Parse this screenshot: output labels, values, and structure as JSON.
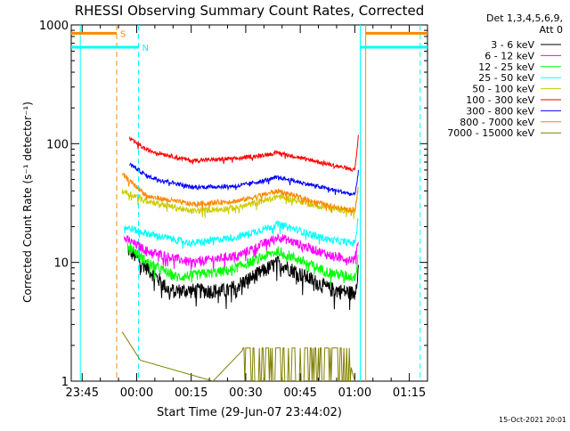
{
  "chart_data": {
    "type": "line",
    "title": "RHESSI Observing Summary Count Rates, Corrected",
    "xlabel": "Start Time (29-Jun-07 23:44:02)",
    "ylabel": "Corrected Count Rate (s⁻¹ detector⁻¹)",
    "y_scale": "log",
    "ylim": [
      1,
      1000
    ],
    "xlim_minutes_after_2345": [
      -3,
      95
    ],
    "x_ticks": [
      {
        "label": "23:45",
        "minutes": 0
      },
      {
        "label": "00:00",
        "minutes": 15
      },
      {
        "label": "00:15",
        "minutes": 30
      },
      {
        "label": "00:30",
        "minutes": 45
      },
      {
        "label": "00:45",
        "minutes": 60
      },
      {
        "label": "01:00",
        "minutes": 75
      },
      {
        "label": "01:15",
        "minutes": 90
      }
    ],
    "y_ticks": [
      {
        "label": "1",
        "value": 1
      },
      {
        "label": "10",
        "value": 10
      },
      {
        "label": "100",
        "value": 100
      },
      {
        "label": "1000",
        "value": 1000
      }
    ],
    "legend_header": [
      "Det 1,3,4,5,6,9,",
      "Att 0"
    ],
    "legend_position": "right",
    "series": [
      {
        "name": "3 - 6 keV",
        "color": "#000000",
        "start": 12.5,
        "start_level": 13,
        "profile": [
          [
            18,
            9
          ],
          [
            24,
            5.8
          ],
          [
            40,
            5.8
          ],
          [
            54,
            10
          ],
          [
            68,
            6
          ],
          [
            75,
            5.5
          ],
          [
            76,
            9
          ]
        ],
        "jitter": 0.15
      },
      {
        "name": "6 - 12 keV",
        "color": "#ff00ff",
        "start": 11.5,
        "start_level": 16,
        "profile": [
          [
            18,
            12.5
          ],
          [
            30,
            10
          ],
          [
            43,
            11.5
          ],
          [
            54,
            16.5
          ],
          [
            68,
            11.5
          ],
          [
            75,
            10.5
          ],
          [
            76,
            16
          ]
        ],
        "jitter": 0.09
      },
      {
        "name": "12 - 25 keV",
        "color": "#00ff00",
        "start": 12.5,
        "start_level": 14,
        "profile": [
          [
            18,
            10
          ],
          [
            26,
            7.5
          ],
          [
            40,
            8.5
          ],
          [
            54,
            12.5
          ],
          [
            68,
            8.2
          ],
          [
            75,
            7.5
          ],
          [
            76,
            12
          ]
        ],
        "jitter": 0.1
      },
      {
        "name": "25 - 50 keV",
        "color": "#00ffff",
        "start": 11.5,
        "start_level": 20,
        "profile": [
          [
            18,
            17.5
          ],
          [
            30,
            14.5
          ],
          [
            43,
            16.5
          ],
          [
            54,
            21
          ],
          [
            68,
            15.5
          ],
          [
            75,
            14.5
          ],
          [
            76,
            24
          ]
        ],
        "jitter": 0.07
      },
      {
        "name": "50 - 100 keV",
        "color": "#cccc00",
        "start": 11,
        "start_level": 40,
        "profile": [
          [
            18,
            33
          ],
          [
            30,
            27
          ],
          [
            43,
            29
          ],
          [
            54,
            36
          ],
          [
            68,
            28.5
          ],
          [
            75,
            27
          ],
          [
            76,
            42
          ]
        ],
        "jitter": 0.06
      },
      {
        "name": "100 - 300 keV",
        "color": "#ff0000",
        "start": 13,
        "start_level": 110,
        "profile": [
          [
            18,
            88
          ],
          [
            30,
            72
          ],
          [
            43,
            75
          ],
          [
            54,
            84
          ],
          [
            68,
            67
          ],
          [
            75,
            60
          ],
          [
            76,
            115
          ]
        ],
        "jitter": 0.04
      },
      {
        "name": "300 - 800 keV",
        "color": "#0000ff",
        "start": 13,
        "start_level": 68,
        "profile": [
          [
            18,
            53
          ],
          [
            30,
            43
          ],
          [
            43,
            44
          ],
          [
            54,
            52
          ],
          [
            68,
            41.5
          ],
          [
            75,
            37
          ],
          [
            76,
            58
          ]
        ],
        "jitter": 0.04
      },
      {
        "name": "800 - 7000 keV",
        "color": "#ff8800",
        "start": 11,
        "start_level": 55,
        "profile": [
          [
            18,
            36
          ],
          [
            30,
            31
          ],
          [
            43,
            33
          ],
          [
            54,
            40
          ],
          [
            68,
            30
          ],
          [
            75,
            27.5
          ],
          [
            76,
            44
          ]
        ],
        "jitter": 0.05
      },
      {
        "name": "7000 - 15000 keV",
        "color": "#808000",
        "start": 11,
        "start_level": 2.6,
        "profile": [
          [
            16,
            1.5
          ],
          [
            36,
            1
          ],
          [
            44,
            1.8
          ],
          [
            60,
            1.8
          ],
          [
            62,
            1.4
          ],
          [
            74,
            1.3
          ],
          [
            75,
            1
          ]
        ],
        "jitter": 0
      }
    ],
    "flag_bars": [
      {
        "label": "S",
        "color": "#ff8800",
        "segments": [
          [
            -3,
            9.5
          ],
          [
            78,
            95
          ]
        ],
        "value": 850
      },
      {
        "label": "N",
        "color": "#00ffff",
        "segments": [
          [
            -3,
            15.5
          ],
          [
            76.5,
            95
          ]
        ],
        "value": 650
      }
    ],
    "vlines": [
      {
        "minutes": -0.5,
        "color": "#00ffff",
        "style": "solid"
      },
      {
        "minutes": 9.5,
        "color": "#ff8800",
        "style": "dashed"
      },
      {
        "minutes": 15.5,
        "color": "#00ffff",
        "style": "dashed"
      },
      {
        "minutes": 76.5,
        "color": "#00ffff",
        "style": "solid"
      },
      {
        "minutes": 78,
        "color": "#ff8800",
        "style": "solid"
      },
      {
        "minutes": 93,
        "color": "#00ffff",
        "style": "dashed"
      }
    ],
    "footer_date": "15-Oct-2021 20:01",
    "colors": {
      "background": "#ffffff",
      "axis": "#000000"
    }
  }
}
